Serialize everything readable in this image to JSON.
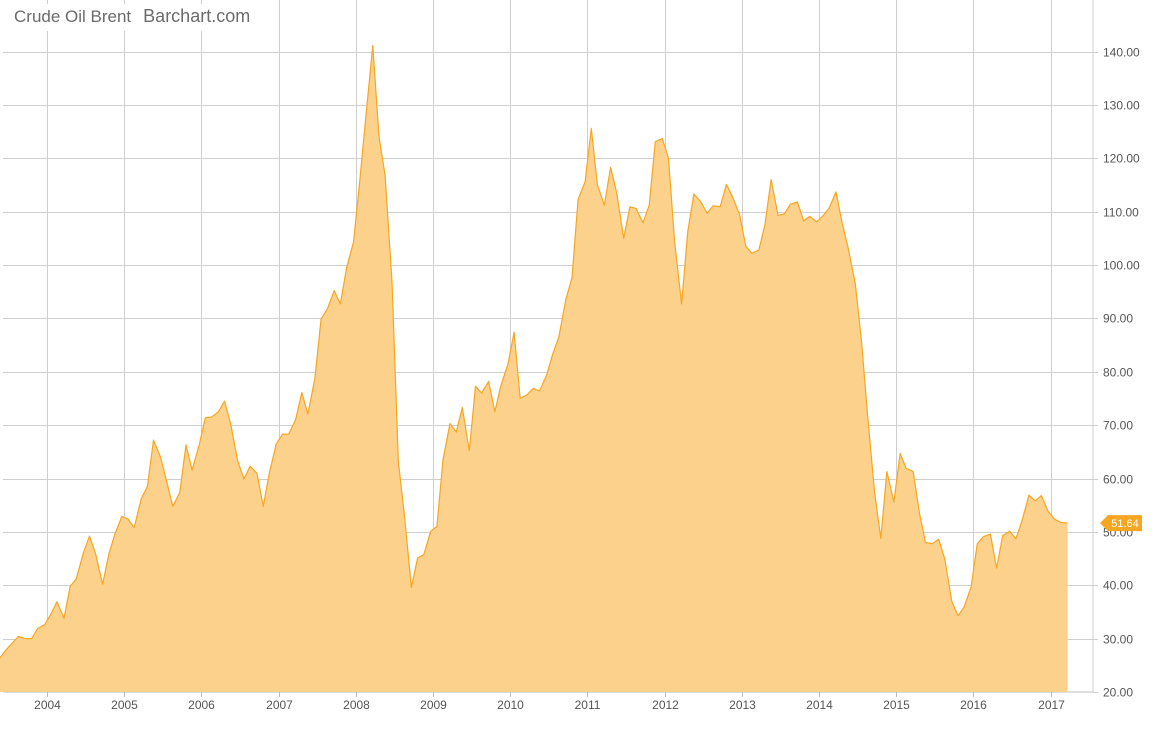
{
  "header": {
    "title": "Crude Oil Brent",
    "brand": "Barchart.com"
  },
  "colors": {
    "fill": "#fcd18c",
    "line": "#f5a623",
    "grid": "#cfcfcf",
    "axis_text": "#555555",
    "badge": "#f5a623",
    "badge_text": "#ffffff"
  },
  "last_value_label": "51.64",
  "chart_data": {
    "type": "area",
    "title": "Crude Oil Brent",
    "xlabel": "",
    "ylabel": "",
    "ylim": [
      20,
      145
    ],
    "xlim": [
      2003.3,
      2017.55
    ],
    "grid": true,
    "legend": "none",
    "y_ticks": [
      20,
      30,
      40,
      50,
      60,
      70,
      80,
      90,
      100,
      110,
      120,
      130,
      140
    ],
    "y_tick_labels": [
      "20.00",
      "30.00",
      "40.00",
      "50.00",
      "60.00",
      "70.00",
      "80.00",
      "90.00",
      "100.00",
      "110.00",
      "120.00",
      "130.00",
      "140.00"
    ],
    "x_ticks": [
      2004,
      2005,
      2006,
      2007,
      2008,
      2009,
      2010,
      2011,
      2012,
      2013,
      2014,
      2015,
      2016,
      2017
    ],
    "x_tick_labels": [
      "2004",
      "2005",
      "2006",
      "2007",
      "2008",
      "2009",
      "2010",
      "2011",
      "2012",
      "2013",
      "2014",
      "2015",
      "2016",
      "2017"
    ],
    "series": [
      {
        "points": [
          [
            2003.3,
            23.5
          ],
          [
            2003.38,
            26.2
          ],
          [
            2003.47,
            27.9
          ],
          [
            2003.55,
            29.2
          ],
          [
            2003.63,
            30.4
          ],
          [
            2003.72,
            30.0
          ],
          [
            2003.8,
            30.0
          ],
          [
            2003.88,
            31.9
          ],
          [
            2003.97,
            32.6
          ],
          [
            2004.05,
            34.6
          ],
          [
            2004.13,
            36.9
          ],
          [
            2004.22,
            33.8
          ],
          [
            2004.3,
            39.8
          ],
          [
            2004.38,
            41.2
          ],
          [
            2004.47,
            46.0
          ],
          [
            2004.55,
            49.2
          ],
          [
            2004.63,
            45.9
          ],
          [
            2004.72,
            40.2
          ],
          [
            2004.8,
            45.8
          ],
          [
            2004.88,
            49.6
          ],
          [
            2004.97,
            52.9
          ],
          [
            2005.05,
            52.4
          ],
          [
            2005.13,
            50.8
          ],
          [
            2005.22,
            56.2
          ],
          [
            2005.3,
            58.5
          ],
          [
            2005.38,
            67.2
          ],
          [
            2005.47,
            64.0
          ],
          [
            2005.55,
            59.4
          ],
          [
            2005.63,
            54.8
          ],
          [
            2005.72,
            57.4
          ],
          [
            2005.8,
            66.3
          ],
          [
            2005.88,
            61.6
          ],
          [
            2005.97,
            66.2
          ],
          [
            2006.05,
            71.4
          ],
          [
            2006.13,
            71.5
          ],
          [
            2006.22,
            72.5
          ],
          [
            2006.3,
            74.5
          ],
          [
            2006.38,
            70.2
          ],
          [
            2006.47,
            63.3
          ],
          [
            2006.55,
            59.9
          ],
          [
            2006.63,
            62.3
          ],
          [
            2006.72,
            61.0
          ],
          [
            2006.8,
            54.8
          ],
          [
            2006.88,
            61.0
          ],
          [
            2006.97,
            66.5
          ],
          [
            2007.05,
            68.3
          ],
          [
            2007.13,
            68.3
          ],
          [
            2007.22,
            71.0
          ],
          [
            2007.3,
            76.1
          ],
          [
            2007.38,
            72.1
          ],
          [
            2007.47,
            78.8
          ],
          [
            2007.55,
            89.9
          ],
          [
            2007.63,
            91.7
          ],
          [
            2007.72,
            95.2
          ],
          [
            2007.8,
            92.7
          ],
          [
            2007.88,
            99.4
          ],
          [
            2007.97,
            104.3
          ],
          [
            2008.05,
            115.6
          ],
          [
            2008.13,
            127.7
          ],
          [
            2008.22,
            141.1
          ],
          [
            2008.3,
            124.0
          ],
          [
            2008.38,
            116.8
          ],
          [
            2008.47,
            96.5
          ],
          [
            2008.55,
            63.3
          ],
          [
            2008.63,
            53.1
          ],
          [
            2008.72,
            39.6
          ],
          [
            2008.8,
            45.1
          ],
          [
            2008.88,
            45.7
          ],
          [
            2008.97,
            50.1
          ],
          [
            2009.05,
            51.0
          ],
          [
            2009.13,
            63.5
          ],
          [
            2009.22,
            70.3
          ],
          [
            2009.3,
            68.7
          ],
          [
            2009.38,
            73.3
          ],
          [
            2009.47,
            65.2
          ],
          [
            2009.55,
            77.3
          ],
          [
            2009.63,
            76.0
          ],
          [
            2009.72,
            78.2
          ],
          [
            2009.8,
            72.5
          ],
          [
            2009.88,
            77.4
          ],
          [
            2009.97,
            81.4
          ],
          [
            2010.05,
            87.4
          ],
          [
            2010.13,
            75.0
          ],
          [
            2010.22,
            75.7
          ],
          [
            2010.3,
            76.9
          ],
          [
            2010.38,
            76.4
          ],
          [
            2010.47,
            79.3
          ],
          [
            2010.55,
            83.3
          ],
          [
            2010.63,
            86.5
          ],
          [
            2010.72,
            93.5
          ],
          [
            2010.8,
            97.6
          ],
          [
            2010.88,
            112.3
          ],
          [
            2010.97,
            115.6
          ],
          [
            2011.05,
            125.6
          ],
          [
            2011.13,
            115.0
          ],
          [
            2011.22,
            111.2
          ],
          [
            2011.3,
            118.3
          ],
          [
            2011.38,
            113.5
          ],
          [
            2011.47,
            105.0
          ],
          [
            2011.55,
            110.9
          ],
          [
            2011.63,
            110.6
          ],
          [
            2011.72,
            107.9
          ],
          [
            2011.8,
            111.2
          ],
          [
            2011.88,
            123.1
          ],
          [
            2011.97,
            123.7
          ],
          [
            2012.05,
            120.0
          ],
          [
            2012.13,
            104.4
          ],
          [
            2012.22,
            92.7
          ],
          [
            2012.3,
            106.3
          ],
          [
            2012.38,
            113.3
          ],
          [
            2012.47,
            111.8
          ],
          [
            2012.55,
            109.7
          ],
          [
            2012.63,
            111.1
          ],
          [
            2012.72,
            110.9
          ],
          [
            2012.8,
            115.1
          ],
          [
            2012.88,
            112.8
          ],
          [
            2012.97,
            109.5
          ],
          [
            2013.05,
            103.6
          ],
          [
            2013.13,
            102.2
          ],
          [
            2013.22,
            102.8
          ],
          [
            2013.3,
            107.6
          ],
          [
            2013.38,
            116.0
          ],
          [
            2013.47,
            109.3
          ],
          [
            2013.55,
            109.6
          ],
          [
            2013.63,
            111.4
          ],
          [
            2013.72,
            111.8
          ],
          [
            2013.8,
            108.3
          ],
          [
            2013.88,
            109.1
          ],
          [
            2013.97,
            108.1
          ],
          [
            2014.05,
            109.2
          ],
          [
            2014.13,
            110.6
          ],
          [
            2014.22,
            113.7
          ],
          [
            2014.3,
            107.8
          ],
          [
            2014.38,
            103.1
          ],
          [
            2014.47,
            96.5
          ],
          [
            2014.55,
            85.7
          ],
          [
            2014.63,
            71.8
          ],
          [
            2014.72,
            57.4
          ],
          [
            2014.8,
            48.8
          ],
          [
            2014.88,
            61.3
          ],
          [
            2014.97,
            55.6
          ],
          [
            2015.05,
            64.7
          ],
          [
            2015.13,
            61.9
          ],
          [
            2015.22,
            61.3
          ],
          [
            2015.3,
            53.6
          ],
          [
            2015.38,
            48.0
          ],
          [
            2015.47,
            47.8
          ],
          [
            2015.55,
            48.6
          ],
          [
            2015.63,
            44.9
          ],
          [
            2015.72,
            37.0
          ],
          [
            2015.8,
            34.3
          ],
          [
            2015.88,
            35.9
          ],
          [
            2015.97,
            39.7
          ],
          [
            2016.05,
            47.8
          ],
          [
            2016.13,
            49.1
          ],
          [
            2016.22,
            49.6
          ],
          [
            2016.3,
            43.2
          ],
          [
            2016.38,
            49.3
          ],
          [
            2016.47,
            50.1
          ],
          [
            2016.55,
            48.7
          ],
          [
            2016.63,
            52.1
          ],
          [
            2016.72,
            56.9
          ],
          [
            2016.8,
            55.8
          ],
          [
            2016.88,
            56.8
          ],
          [
            2016.97,
            53.8
          ],
          [
            2017.05,
            52.4
          ],
          [
            2017.13,
            51.8
          ],
          [
            2017.22,
            51.64
          ]
        ]
      }
    ]
  }
}
